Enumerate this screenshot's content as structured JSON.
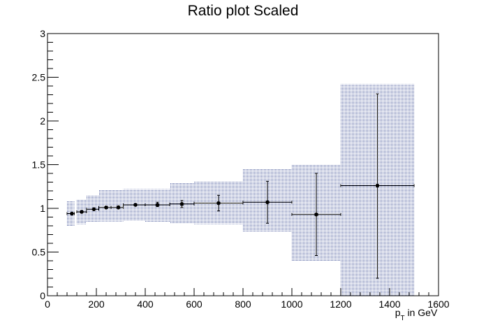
{
  "chart_data": {
    "type": "scatter",
    "title": "Ratio plot Scaled",
    "xlabel": {
      "main": "p",
      "sub": "T",
      "rest": " in GeV"
    },
    "ylabel": "",
    "xlim": [
      0,
      1600
    ],
    "ylim": [
      0,
      3
    ],
    "x_ticks": [
      "0",
      "200",
      "400",
      "600",
      "800",
      "1000",
      "1200",
      "1400",
      "1600"
    ],
    "y_ticks": [
      "0",
      "0.5",
      "1",
      "1.5",
      "2",
      "2.5",
      "3"
    ],
    "grid": false,
    "legend": "none",
    "colors": {
      "points": "#000000",
      "band": "#4a5a9c",
      "frame": "#000000"
    },
    "points": [
      {
        "x": 100,
        "xlo": 80,
        "xhi": 110,
        "y": 0.94,
        "ylo": 0.93,
        "yhi": 0.95,
        "band_lo": 0.8,
        "band_hi": 1.08
      },
      {
        "x": 140,
        "xlo": 120,
        "xhi": 160,
        "y": 0.96,
        "ylo": 0.95,
        "yhi": 0.97,
        "band_lo": 0.82,
        "band_hi": 1.1
      },
      {
        "x": 190,
        "xlo": 160,
        "xhi": 210,
        "y": 0.99,
        "ylo": 0.98,
        "yhi": 1.0,
        "band_lo": 0.84,
        "band_hi": 1.15
      },
      {
        "x": 240,
        "xlo": 210,
        "xhi": 260,
        "y": 1.01,
        "ylo": 1.0,
        "yhi": 1.02,
        "band_lo": 0.85,
        "band_hi": 1.21
      },
      {
        "x": 290,
        "xlo": 260,
        "xhi": 310,
        "y": 1.01,
        "ylo": 1.0,
        "yhi": 1.03,
        "band_lo": 0.85,
        "band_hi": 1.21
      },
      {
        "x": 360,
        "xlo": 310,
        "xhi": 400,
        "y": 1.04,
        "ylo": 1.03,
        "yhi": 1.05,
        "band_lo": 0.86,
        "band_hi": 1.22
      },
      {
        "x": 450,
        "xlo": 400,
        "xhi": 500,
        "y": 1.04,
        "ylo": 1.02,
        "yhi": 1.07,
        "band_lo": 0.84,
        "band_hi": 1.22
      },
      {
        "x": 550,
        "xlo": 500,
        "xhi": 600,
        "y": 1.05,
        "ylo": 1.01,
        "yhi": 1.09,
        "band_lo": 0.83,
        "band_hi": 1.29
      },
      {
        "x": 700,
        "xlo": 600,
        "xhi": 800,
        "y": 1.06,
        "ylo": 0.97,
        "yhi": 1.15,
        "band_lo": 0.82,
        "band_hi": 1.31
      },
      {
        "x": 900,
        "xlo": 800,
        "xhi": 1000,
        "y": 1.07,
        "ylo": 0.83,
        "yhi": 1.31,
        "band_lo": 0.73,
        "band_hi": 1.45
      },
      {
        "x": 1100,
        "xlo": 1000,
        "xhi": 1200,
        "y": 0.93,
        "ylo": 0.46,
        "yhi": 1.4,
        "band_lo": 0.4,
        "band_hi": 1.5
      },
      {
        "x": 1350,
        "xlo": 1200,
        "xhi": 1500,
        "y": 1.26,
        "ylo": 0.2,
        "yhi": 2.31,
        "band_lo": 0.0,
        "band_hi": 2.42
      }
    ]
  }
}
